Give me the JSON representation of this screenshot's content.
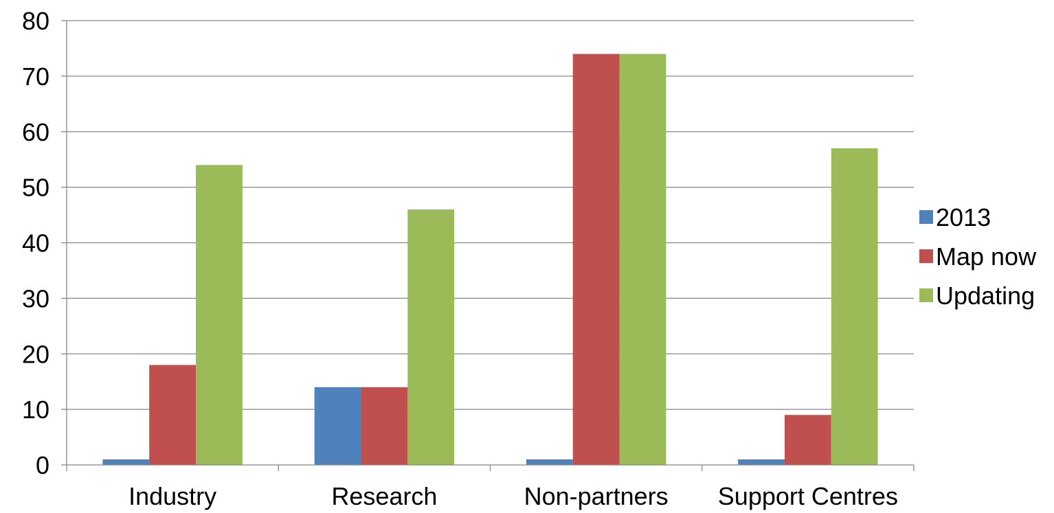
{
  "chart_data": {
    "type": "bar",
    "categories": [
      "Industry",
      "Research",
      "Non-partners",
      "Support Centres"
    ],
    "series": [
      {
        "name": "2013",
        "color": "#4F81BD",
        "values": [
          1,
          14,
          1,
          1
        ]
      },
      {
        "name": "Map now",
        "color": "#C0504D",
        "values": [
          18,
          14,
          74,
          9
        ]
      },
      {
        "name": "Updating",
        "color": "#9BBB59",
        "values": [
          54,
          46,
          74,
          57
        ]
      }
    ],
    "ylim": [
      0,
      80
    ],
    "yticks": [
      0,
      10,
      20,
      30,
      40,
      50,
      60,
      70,
      80
    ],
    "grid": true,
    "legend_position": "right"
  }
}
